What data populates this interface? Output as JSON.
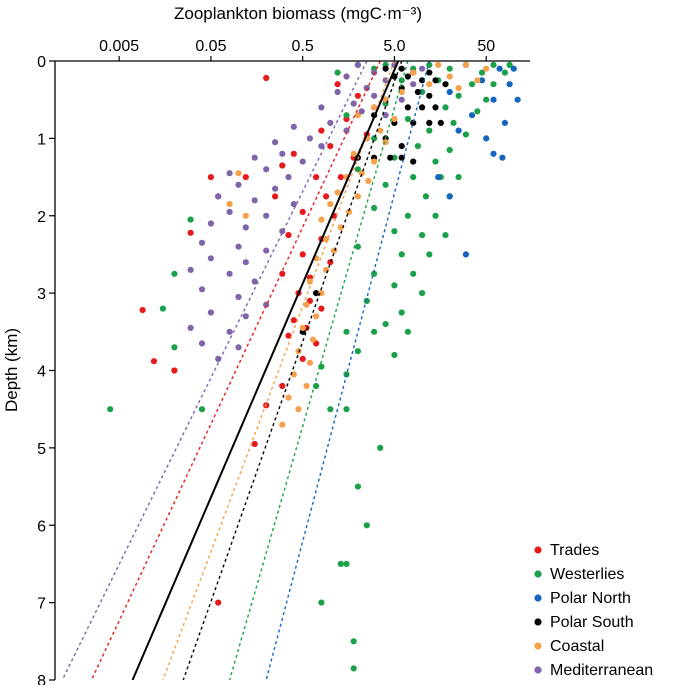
{
  "chart_data": {
    "type": "scatter",
    "title": "",
    "xlabel": "Zooplankton biomass (mgC·m⁻³)",
    "ylabel": "Depth (km)",
    "x_scale": "log",
    "xlim": [
      0.001,
      150
    ],
    "ylim": [
      0,
      8
    ],
    "y_inverted": true,
    "x_axis_position": "top",
    "x_ticks": [
      0.005,
      0.05,
      0.5,
      5.0,
      50
    ],
    "x_tick_labels": [
      "0.005",
      "0.05",
      "0.5",
      "5.0",
      "50"
    ],
    "y_ticks": [
      0,
      1,
      2,
      3,
      4,
      5,
      6,
      7,
      8
    ],
    "y_tick_labels": [
      "0",
      "1",
      "2",
      "3",
      "4",
      "5",
      "6",
      "7",
      "8"
    ],
    "grid": false,
    "legend_position": "bottom-right",
    "series": [
      {
        "name": "Trades",
        "color": "#e8191c",
        "fit": {
          "x_at_top": 3.5,
          "x_at_bottom": 0.0025,
          "style": "dashed"
        },
        "points": [
          [
            0.2,
            0.22
          ],
          [
            1.2,
            0.3
          ],
          [
            2.0,
            0.45
          ],
          [
            3.0,
            0.6
          ],
          [
            1.5,
            0.75
          ],
          [
            0.8,
            0.9
          ],
          [
            2.5,
            0.95
          ],
          [
            1.0,
            1.1
          ],
          [
            0.4,
            1.2
          ],
          [
            1.8,
            1.25
          ],
          [
            0.3,
            1.35
          ],
          [
            0.05,
            1.5
          ],
          [
            0.12,
            1.5
          ],
          [
            0.7,
            1.5
          ],
          [
            1.3,
            1.5
          ],
          [
            0.06,
            1.75
          ],
          [
            0.25,
            1.75
          ],
          [
            0.9,
            1.75
          ],
          [
            0.5,
            1.95
          ],
          [
            1.1,
            2.0
          ],
          [
            0.03,
            2.22
          ],
          [
            0.35,
            2.25
          ],
          [
            0.8,
            2.3
          ],
          [
            0.5,
            2.5
          ],
          [
            1.0,
            2.6
          ],
          [
            0.3,
            2.75
          ],
          [
            0.6,
            2.8
          ],
          [
            0.45,
            3.0
          ],
          [
            0.6,
            3.1
          ],
          [
            0.8,
            3.2
          ],
          [
            0.009,
            3.22
          ],
          [
            0.4,
            3.35
          ],
          [
            0.55,
            3.45
          ],
          [
            0.35,
            3.55
          ],
          [
            0.7,
            3.65
          ],
          [
            0.012,
            3.88
          ],
          [
            0.5,
            3.85
          ],
          [
            0.02,
            4.0
          ],
          [
            0.3,
            4.2
          ],
          [
            0.2,
            4.45
          ],
          [
            0.15,
            4.95
          ],
          [
            0.06,
            7.0
          ]
        ]
      },
      {
        "name": "Westerlies",
        "color": "#1aa14a",
        "fit": {
          "x_at_top": 7.0,
          "x_at_bottom": 0.08,
          "style": "dashed"
        },
        "points": [
          [
            2,
            0.05
          ],
          [
            4,
            0.05
          ],
          [
            12,
            0.05
          ],
          [
            30,
            0.05
          ],
          [
            60,
            0.05
          ],
          [
            90,
            0.05
          ],
          [
            3,
            0.1
          ],
          [
            8,
            0.1
          ],
          [
            20,
            0.1
          ],
          [
            45,
            0.15
          ],
          [
            80,
            0.15
          ],
          [
            1.2,
            0.15
          ],
          [
            6,
            0.25
          ],
          [
            15,
            0.25
          ],
          [
            35,
            0.3
          ],
          [
            60,
            0.3
          ],
          [
            2.5,
            0.35
          ],
          [
            10,
            0.4
          ],
          [
            25,
            0.45
          ],
          [
            50,
            0.5
          ],
          [
            4,
            0.55
          ],
          [
            18,
            0.6
          ],
          [
            40,
            0.65
          ],
          [
            1.5,
            0.7
          ],
          [
            7,
            0.75
          ],
          [
            22,
            0.8
          ],
          [
            12,
            0.9
          ],
          [
            30,
            0.95
          ],
          [
            3,
            1.0
          ],
          [
            9,
            1.1
          ],
          [
            20,
            1.15
          ],
          [
            5,
            1.25
          ],
          [
            14,
            1.3
          ],
          [
            2,
            1.4
          ],
          [
            8,
            1.5
          ],
          [
            16,
            1.5
          ],
          [
            25,
            1.5
          ],
          [
            4,
            1.6
          ],
          [
            11,
            1.75
          ],
          [
            20,
            1.75
          ],
          [
            3,
            1.9
          ],
          [
            7,
            2.0
          ],
          [
            14,
            2.0
          ],
          [
            0.03,
            2.05
          ],
          [
            5,
            2.2
          ],
          [
            10,
            2.25
          ],
          [
            18,
            2.25
          ],
          [
            2,
            2.4
          ],
          [
            6,
            2.5
          ],
          [
            12,
            2.5
          ],
          [
            0.02,
            2.75
          ],
          [
            3,
            2.75
          ],
          [
            8,
            2.75
          ],
          [
            5,
            2.9
          ],
          [
            10,
            3.0
          ],
          [
            2.5,
            3.1
          ],
          [
            0.015,
            3.2
          ],
          [
            6,
            3.25
          ],
          [
            4,
            3.4
          ],
          [
            1.5,
            3.5
          ],
          [
            3,
            3.5
          ],
          [
            7,
            3.5
          ],
          [
            0.02,
            3.7
          ],
          [
            2,
            3.75
          ],
          [
            5,
            3.8
          ],
          [
            0.8,
            3.95
          ],
          [
            1.5,
            4.05
          ],
          [
            0.7,
            4.2
          ],
          [
            0.004,
            4.5
          ],
          [
            0.04,
            4.5
          ],
          [
            1.0,
            4.5
          ],
          [
            1.5,
            4.5
          ],
          [
            3.5,
            5.0
          ],
          [
            2.0,
            5.5
          ],
          [
            2.5,
            6.0
          ],
          [
            1.3,
            6.5
          ],
          [
            1.5,
            6.5
          ],
          [
            0.8,
            7.0
          ],
          [
            1.8,
            7.5
          ],
          [
            1.8,
            7.85
          ]
        ]
      },
      {
        "name": "Polar North",
        "color": "#1565c0",
        "fit": {
          "x_at_top": 12.0,
          "x_at_bottom": 0.2,
          "style": "dashed"
        },
        "points": [
          [
            30,
            0.05
          ],
          [
            70,
            0.1
          ],
          [
            100,
            0.1
          ],
          [
            45,
            0.25
          ],
          [
            90,
            0.3
          ],
          [
            20,
            0.4
          ],
          [
            60,
            0.5
          ],
          [
            110,
            0.5
          ],
          [
            35,
            0.7
          ],
          [
            80,
            0.8
          ],
          [
            25,
            0.9
          ],
          [
            50,
            1.0
          ],
          [
            60,
            1.2
          ],
          [
            75,
            1.25
          ],
          [
            15,
            1.5
          ],
          [
            20,
            1.75
          ],
          [
            30,
            2.5
          ]
        ]
      },
      {
        "name": "Polar South",
        "color": "#000000",
        "fit": {
          "x_at_top": 6.0,
          "x_at_bottom": 0.025,
          "style": "dashed"
        },
        "points": [
          [
            4,
            0.1
          ],
          [
            6,
            0.1
          ],
          [
            8,
            0.15
          ],
          [
            12,
            0.15
          ],
          [
            5,
            0.2
          ],
          [
            7,
            0.2
          ],
          [
            10,
            0.25
          ],
          [
            14,
            0.25
          ],
          [
            18,
            0.3
          ],
          [
            6,
            0.35
          ],
          [
            9,
            0.4
          ],
          [
            12,
            0.45
          ],
          [
            4,
            0.5
          ],
          [
            7,
            0.6
          ],
          [
            10,
            0.6
          ],
          [
            14,
            0.6
          ],
          [
            3,
            0.7
          ],
          [
            5,
            0.8
          ],
          [
            8,
            0.8
          ],
          [
            12,
            0.8
          ],
          [
            16,
            0.8
          ],
          [
            2.5,
            1.0
          ],
          [
            4,
            1.0
          ],
          [
            6,
            1.1
          ],
          [
            2,
            1.25
          ],
          [
            3,
            1.25
          ],
          [
            4.5,
            1.25
          ],
          [
            6,
            1.25
          ],
          [
            8,
            1.3
          ],
          [
            0.7,
            3.0
          ],
          [
            0.5,
            3.5
          ]
        ]
      },
      {
        "name": "Coastal",
        "color": "#f5a04a",
        "fit": {
          "x_at_top": 5.0,
          "x_at_bottom": 0.015,
          "style": "dashed"
        },
        "points": [
          [
            15,
            0.05
          ],
          [
            30,
            0.05
          ],
          [
            50,
            0.1
          ],
          [
            8,
            0.15
          ],
          [
            20,
            0.2
          ],
          [
            40,
            0.25
          ],
          [
            12,
            0.3
          ],
          [
            25,
            0.35
          ],
          [
            6,
            0.4
          ],
          [
            4,
            0.5
          ],
          [
            3,
            0.6
          ],
          [
            2,
            0.7
          ],
          [
            5,
            0.75
          ],
          [
            3.5,
            0.9
          ],
          [
            2.5,
            1.0
          ],
          [
            4,
            1.05
          ],
          [
            1.8,
            1.2
          ],
          [
            3,
            1.3
          ],
          [
            2.2,
            1.45
          ],
          [
            0.1,
            1.45
          ],
          [
            1.5,
            1.5
          ],
          [
            2.6,
            1.55
          ],
          [
            1.2,
            1.7
          ],
          [
            2,
            1.75
          ],
          [
            1.0,
            1.85
          ],
          [
            1.6,
            1.95
          ],
          [
            0.8,
            2.05
          ],
          [
            1.3,
            2.15
          ],
          [
            0.9,
            2.3
          ],
          [
            1.1,
            2.45
          ],
          [
            0.7,
            2.55
          ],
          [
            0.9,
            2.7
          ],
          [
            0.6,
            2.85
          ],
          [
            0.8,
            3.0
          ],
          [
            0.55,
            3.15
          ],
          [
            0.7,
            3.3
          ],
          [
            0.5,
            3.45
          ],
          [
            0.65,
            3.6
          ],
          [
            0.45,
            3.75
          ],
          [
            0.6,
            3.9
          ],
          [
            0.4,
            4.05
          ],
          [
            0.55,
            4.2
          ],
          [
            0.35,
            4.35
          ],
          [
            0.45,
            4.5
          ],
          [
            0.3,
            4.7
          ],
          [
            0.08,
            1.85
          ],
          [
            0.12,
            2.0
          ]
        ]
      },
      {
        "name": "Mediterranean",
        "color": "#7f64a8",
        "fit": {
          "x_at_top": 2.5,
          "x_at_bottom": 0.0012,
          "style": "dashed"
        },
        "points": [
          [
            2,
            0.05
          ],
          [
            5,
            0.05
          ],
          [
            10,
            0.1
          ],
          [
            3,
            0.15
          ],
          [
            1.5,
            0.2
          ],
          [
            4,
            0.25
          ],
          [
            8,
            0.3
          ],
          [
            2.5,
            0.35
          ],
          [
            1.2,
            0.4
          ],
          [
            3,
            0.45
          ],
          [
            6,
            0.5
          ],
          [
            1.8,
            0.55
          ],
          [
            0.8,
            0.6
          ],
          [
            2.2,
            0.65
          ],
          [
            4,
            0.7
          ],
          [
            1.0,
            0.8
          ],
          [
            0.4,
            0.85
          ],
          [
            1.5,
            0.9
          ],
          [
            0.6,
            1.0
          ],
          [
            0.25,
            1.05
          ],
          [
            0.8,
            1.1
          ],
          [
            0.3,
            1.2
          ],
          [
            0.15,
            1.25
          ],
          [
            0.5,
            1.3
          ],
          [
            0.2,
            1.4
          ],
          [
            0.08,
            1.45
          ],
          [
            0.35,
            1.5
          ],
          [
            0.1,
            1.6
          ],
          [
            0.25,
            1.65
          ],
          [
            0.06,
            1.75
          ],
          [
            0.15,
            1.8
          ],
          [
            0.4,
            1.85
          ],
          [
            0.08,
            1.95
          ],
          [
            0.2,
            2.0
          ],
          [
            0.05,
            2.1
          ],
          [
            0.12,
            2.15
          ],
          [
            0.3,
            2.2
          ],
          [
            0.04,
            2.35
          ],
          [
            0.1,
            2.4
          ],
          [
            0.2,
            2.45
          ],
          [
            0.05,
            2.55
          ],
          [
            0.12,
            2.6
          ],
          [
            0.03,
            2.7
          ],
          [
            0.08,
            2.75
          ],
          [
            0.15,
            2.85
          ],
          [
            0.04,
            2.95
          ],
          [
            0.1,
            3.05
          ],
          [
            0.2,
            3.15
          ],
          [
            0.05,
            3.25
          ],
          [
            0.12,
            3.3
          ],
          [
            0.03,
            3.45
          ],
          [
            0.08,
            3.5
          ],
          [
            0.04,
            3.65
          ],
          [
            0.1,
            3.7
          ],
          [
            0.06,
            3.85
          ]
        ]
      }
    ],
    "overall_fit": {
      "x_at_top": 5.5,
      "x_at_bottom": 0.007,
      "style": "solid",
      "color": "#000000"
    }
  }
}
